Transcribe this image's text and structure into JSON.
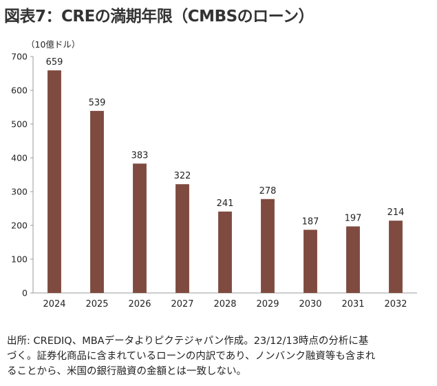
{
  "chart_data": {
    "type": "bar",
    "title": "図表7：CREの満期年限（CMBSのローン）",
    "unit_label": "（10億ドル）",
    "categories": [
      "2024",
      "2025",
      "2026",
      "2027",
      "2028",
      "2029",
      "2030",
      "2031",
      "2032"
    ],
    "values": [
      659,
      539,
      383,
      322,
      241,
      278,
      187,
      197,
      214
    ],
    "ylim": [
      0,
      700
    ],
    "yticks": [
      0,
      100,
      200,
      300,
      400,
      500,
      600,
      700
    ],
    "grid": false,
    "legend": "none",
    "bar_color": "#7f4a3f",
    "data_labels": true
  },
  "source": {
    "lines": [
      "出所: CREDIQ、MBAデータよりピクテジャパン作成。23/12/13時点の分析に基",
      "づく。証券化商品に含まれているローンの内訳であり、ノンバンク融資等も含まれ",
      "ることから、米国の銀行融資の金額とは一致しない。"
    ]
  }
}
